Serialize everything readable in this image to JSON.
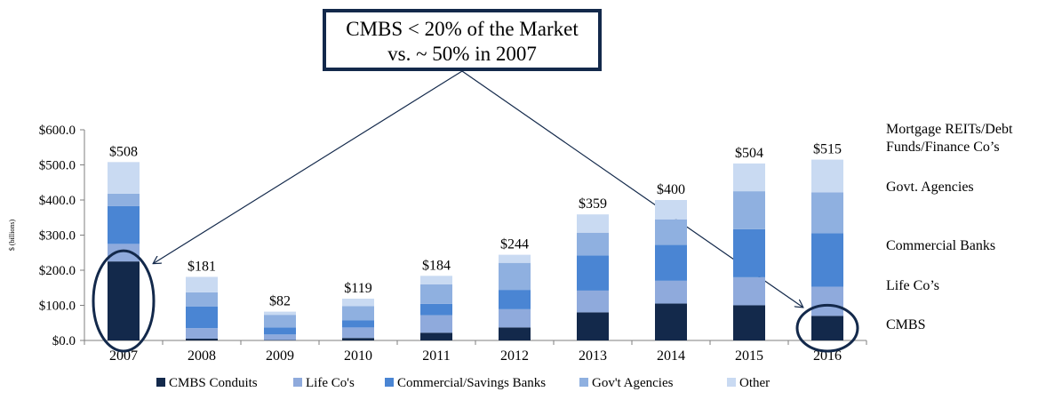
{
  "callout": {
    "line1": "CMBS < 20% of the Market",
    "line2": "vs. ~ 50% in 2007"
  },
  "colors": {
    "cmbs": "#13294b",
    "life": "#8faadc",
    "banks": "#4a85d3",
    "agencies": "#8fb0e0",
    "other": "#c9daf2",
    "highlight": "#13294b"
  },
  "chart_data": {
    "type": "bar",
    "stacked": true,
    "ylabel": "$ (billions)",
    "ylim": [
      0,
      600
    ],
    "yticks": [
      0,
      100,
      200,
      300,
      400,
      500,
      600
    ],
    "ytick_labels": [
      "$0.0",
      "$100.0",
      "$200.0",
      "$300.0",
      "$400.0",
      "$500.0",
      "$600.0"
    ],
    "categories": [
      "2007",
      "2008",
      "2009",
      "2010",
      "2011",
      "2012",
      "2013",
      "2014",
      "2015",
      "2016"
    ],
    "totals_labels": [
      "$508",
      "$181",
      "$82",
      "$119",
      "$184",
      "$244",
      "$359",
      "$400",
      "$504",
      "$515"
    ],
    "series": [
      {
        "name": "CMBS Conduits",
        "color_key": "cmbs",
        "values": [
          225,
          5,
          1,
          7,
          22,
          37,
          80,
          105,
          100,
          70
        ]
      },
      {
        "name": "Life Co's",
        "color_key": "life",
        "values": [
          50,
          30,
          16,
          30,
          50,
          52,
          62,
          65,
          80,
          83
        ]
      },
      {
        "name": "Commercial/Savings Banks",
        "color_key": "banks",
        "values": [
          108,
          62,
          20,
          20,
          32,
          55,
          100,
          102,
          137,
          152
        ]
      },
      {
        "name": "Gov't Agencies",
        "color_key": "agencies",
        "values": [
          35,
          40,
          36,
          41,
          56,
          77,
          65,
          73,
          108,
          117
        ]
      },
      {
        "name": "Other",
        "color_key": "other",
        "values": [
          90,
          44,
          9,
          21,
          24,
          23,
          52,
          55,
          79,
          93
        ]
      }
    ],
    "right_labels": [
      "Mortgage REITs/Debt Funds/Finance Co’s",
      "Govt. Agencies",
      "Commercial Banks",
      "Life Co’s",
      "CMBS"
    ],
    "highlighted_categories": [
      "2007",
      "2016"
    ],
    "legend_position": "bottom",
    "grid": false
  }
}
